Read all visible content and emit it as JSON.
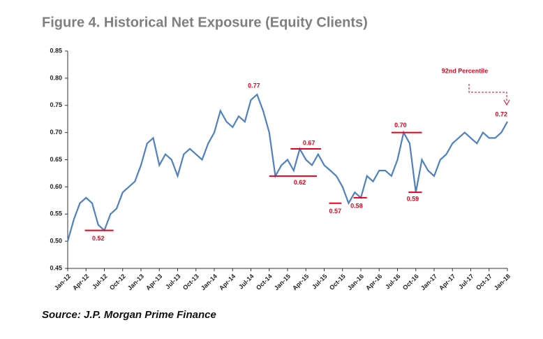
{
  "chart_data": {
    "type": "line",
    "title": "Figure 4. Historical Net Exposure (Equity Clients)",
    "source": "Source: J.P. Morgan Prime Finance",
    "categories": [
      "Jan-12",
      null,
      null,
      "Apr-12",
      null,
      null,
      "Jul-12",
      null,
      null,
      "Oct-12",
      null,
      null,
      "Jan-13",
      null,
      null,
      "Apr-13",
      null,
      null,
      "Jul-13",
      null,
      null,
      "Oct-13",
      null,
      null,
      "Jan-14",
      null,
      null,
      "Apr-14",
      null,
      null,
      "Jul-14",
      null,
      null,
      "Oct-14",
      null,
      null,
      "Jan-15",
      null,
      null,
      "Apr-15",
      null,
      null,
      "Jul-15",
      null,
      null,
      "Oct-15",
      null,
      null,
      "Jan-16",
      null,
      null,
      "Apr-16",
      null,
      null,
      "Jul-16",
      null,
      null,
      "Oct-16",
      null,
      null,
      "Jan-17",
      null,
      null,
      "Apr-17",
      null,
      null,
      "Jul-17",
      null,
      null,
      "Oct-17",
      null,
      null,
      "Jan-18"
    ],
    "series": [
      {
        "color": "#4f81bd",
        "values": [
          0.5,
          0.54,
          0.57,
          0.58,
          0.57,
          0.53,
          0.52,
          0.55,
          0.56,
          0.59,
          0.6,
          0.61,
          0.64,
          0.68,
          0.69,
          0.64,
          0.66,
          0.65,
          0.62,
          0.66,
          0.67,
          0.66,
          0.65,
          0.68,
          0.7,
          0.74,
          0.72,
          0.71,
          0.73,
          0.72,
          0.76,
          0.77,
          0.74,
          0.7,
          0.62,
          0.64,
          0.65,
          0.63,
          0.67,
          0.65,
          0.64,
          0.66,
          0.64,
          0.63,
          0.62,
          0.6,
          0.57,
          0.59,
          0.58,
          0.62,
          0.61,
          0.63,
          0.63,
          0.62,
          0.65,
          0.7,
          0.68,
          0.59,
          0.65,
          0.63,
          0.62,
          0.65,
          0.66,
          0.68,
          0.69,
          0.7,
          0.69,
          0.68,
          0.7,
          0.69,
          0.69,
          0.7,
          0.72
        ]
      }
    ],
    "ylim": [
      0.45,
      0.85
    ],
    "yticks": [
      0.45,
      {
        "value": 0.5,
        "label": "0.50"
      },
      0.55,
      {
        "value": 0.6,
        "label": "0.60"
      },
      0.65,
      {
        "value": 0.7,
        "label": "0.70"
      },
      0.75,
      {
        "value": 0.8,
        "label": "0.80"
      },
      0.85
    ],
    "annotations": [
      {
        "value": 0.77,
        "label": "0.77"
      },
      {
        "value": 0.67,
        "label": "0.67"
      },
      {
        "value": 0.62,
        "label": "0.62"
      },
      {
        "value": 0.52,
        "label": "0.52"
      },
      {
        "value": 0.57,
        "label": "0.57"
      },
      {
        "value": 0.58,
        "label": "0.58"
      },
      {
        "value": 0.7,
        "label": "0.70"
      },
      {
        "value": 0.59,
        "label": "0.59"
      },
      {
        "value": 0.72,
        "label": "0.72"
      }
    ],
    "note": "92nd Percentile"
  }
}
